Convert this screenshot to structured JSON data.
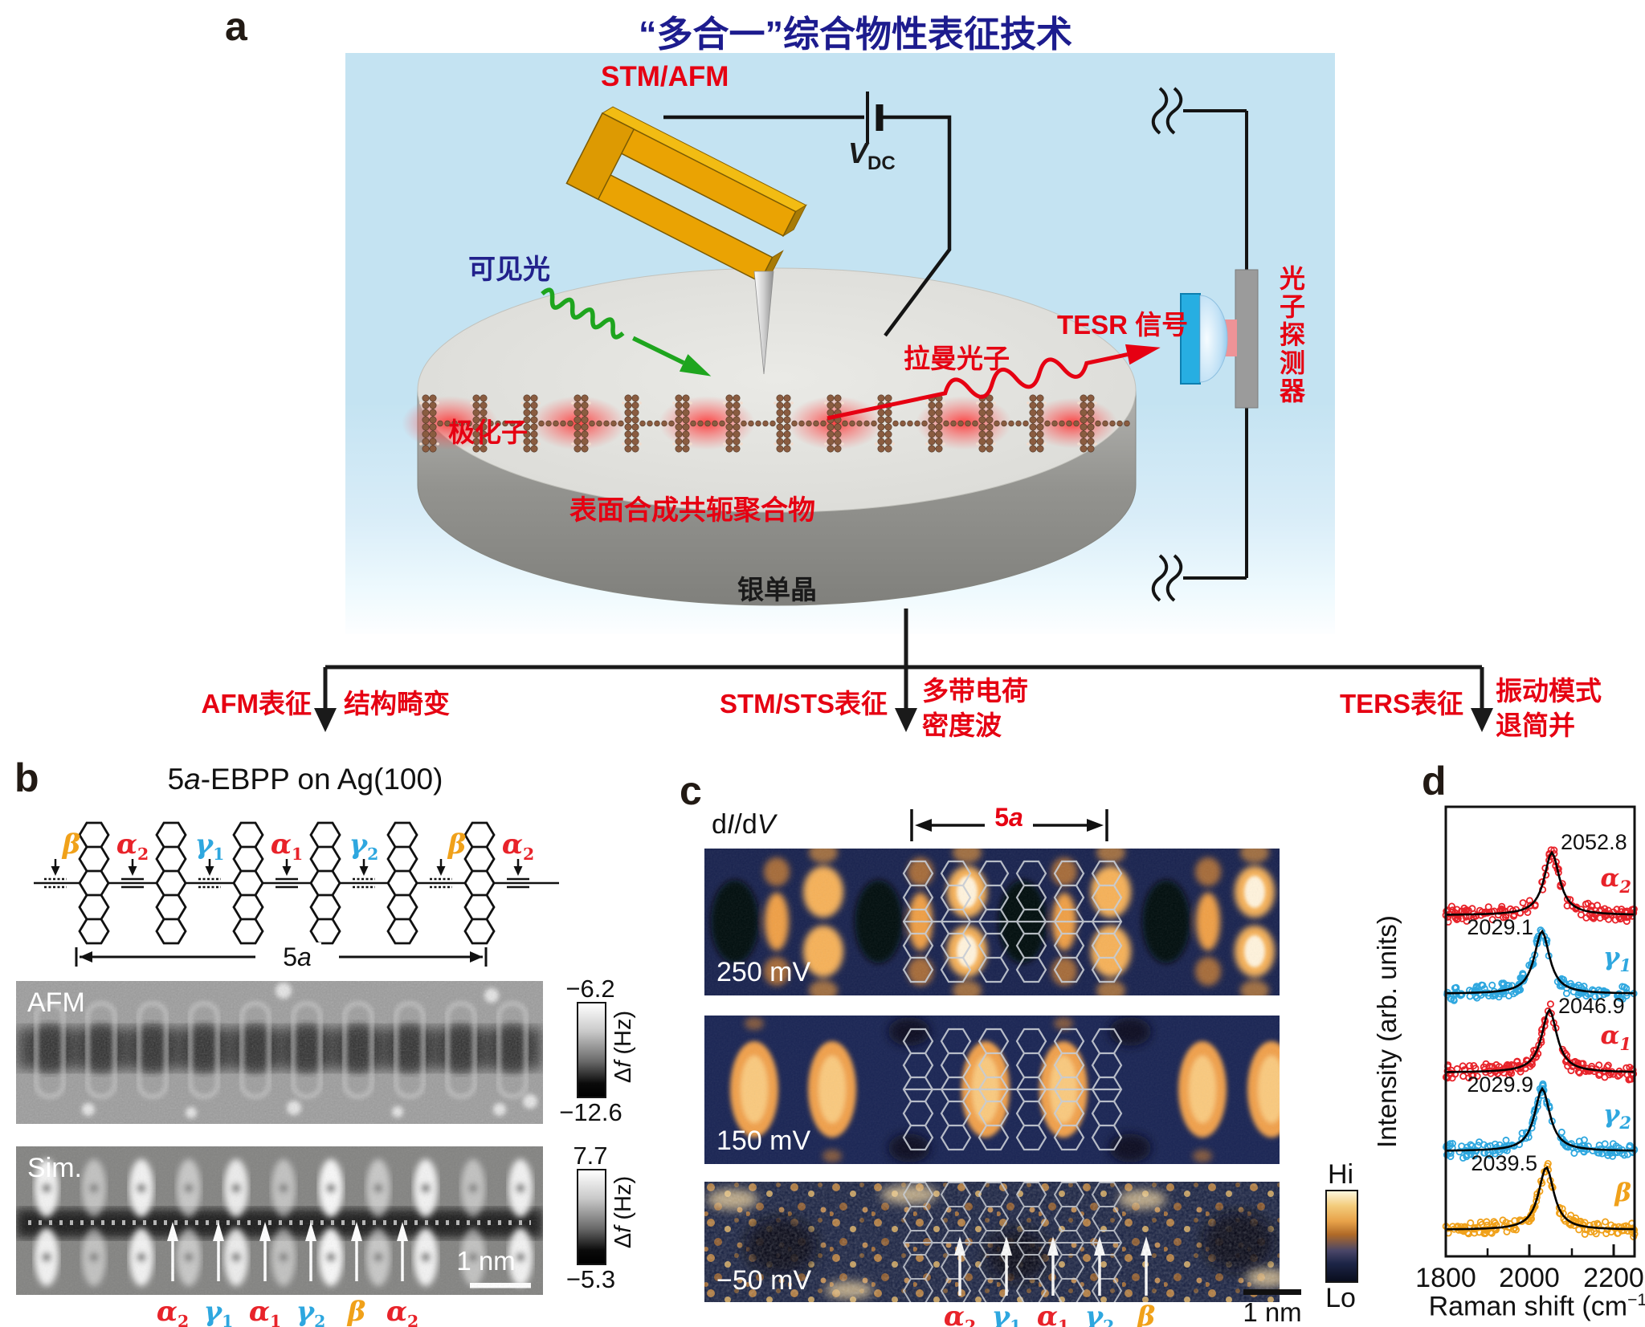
{
  "colors": {
    "accent_red": "#e60012",
    "title_navy": "#1d1c8e",
    "greek_red": "#e8232a",
    "greek_blue": "#2ea7df",
    "greek_orange": "#f0a11a",
    "gold_sensor": "#eaa303",
    "green_light": "#1ea51e",
    "stm_map_navy": "#18224e",
    "stm_map_orange": "#f0a04c"
  },
  "panel_a": {
    "label": "a",
    "title": "“多合一”综合物性表征技术",
    "stm_afm": "STM/AFM",
    "vdc": {
      "main": "V",
      "sub": "DC"
    },
    "visible_light": "可见光",
    "polaron": "极化子",
    "raman_photon": "拉曼光子",
    "tesr": "TESR 信号",
    "photon_detector": "光子探测器",
    "polymer": "表面合成共轭聚合物",
    "substrate": "银单晶"
  },
  "branches": {
    "afm": {
      "technique": "AFM表征",
      "result": "结构畸变"
    },
    "stm": {
      "technique": "STM/STS表征",
      "result": "多带电荷\n密度波"
    },
    "ters": {
      "technique": "TERS表征",
      "result": "振动模式\n退简并"
    }
  },
  "panel_b": {
    "label": "b",
    "title": {
      "pre": "5",
      "i": "a",
      "post": "-EBPP on Ag(100)"
    },
    "bond_labels": [
      {
        "base": "β",
        "sub": ""
      },
      {
        "base": "α",
        "sub": "2"
      },
      {
        "base": "γ",
        "sub": "1"
      },
      {
        "base": "α",
        "sub": "1"
      },
      {
        "base": "γ",
        "sub": "2"
      },
      {
        "base": "β",
        "sub": ""
      },
      {
        "base": "α",
        "sub": "2"
      }
    ],
    "dim": {
      "pre": "5",
      "i": "a"
    },
    "afm_label": "AFM",
    "sim_label": "Sim.",
    "afm_scale": {
      "top": "−6.2",
      "bottom": "−12.6"
    },
    "sim_scale": {
      "top": "7.7",
      "bottom": "−5.3"
    },
    "scale_unit": {
      "d": "Δ",
      "f": "f",
      "rest": " (Hz)"
    },
    "scalebar": "1 nm",
    "site_labels": [
      {
        "base": "α",
        "sub": "2"
      },
      {
        "base": "γ",
        "sub": "1"
      },
      {
        "base": "α",
        "sub": "1"
      },
      {
        "base": "γ",
        "sub": "2"
      },
      {
        "base": "β",
        "sub": ""
      },
      {
        "base": "α",
        "sub": "2"
      }
    ]
  },
  "panel_c": {
    "label": "c",
    "map_type": {
      "p1": "d",
      "p2": "I",
      "p3": "/d",
      "p4": "V"
    },
    "dim": {
      "pre": "5",
      "i": "a"
    },
    "biases": [
      "250 mV",
      "150 mV",
      "−50 mV"
    ],
    "colorbar": {
      "top": "Hi",
      "bottom": "Lo"
    },
    "scalebar": "1 nm",
    "site_labels": [
      {
        "base": "α",
        "sub": "2"
      },
      {
        "base": "γ",
        "sub": "1"
      },
      {
        "base": "α",
        "sub": "1"
      },
      {
        "base": "γ",
        "sub": "2"
      },
      {
        "base": "β",
        "sub": ""
      }
    ]
  },
  "panel_d": {
    "label": "d",
    "xlabel_parts": {
      "pre": "Raman shift (cm",
      "sup": "−1",
      "post": ")"
    }
  },
  "chart_data": {
    "type": "scatter",
    "xlabel": "Raman shift (cm⁻¹)",
    "ylabel": "Intensity (arb. units)",
    "xlim": [
      1800,
      2250
    ],
    "xticks": [
      1800,
      2000,
      2200
    ],
    "stacked_offset": true,
    "series": [
      {
        "base": "α",
        "sub": "2",
        "color": "#e8232a",
        "peak_center": 2052.8,
        "peak_label": "2052.8",
        "label_side": "right"
      },
      {
        "base": "γ",
        "sub": "1",
        "color": "#2ea7df",
        "peak_center": 2029.1,
        "peak_label": "2029.1",
        "label_side": "left"
      },
      {
        "base": "α",
        "sub": "1",
        "color": "#e8232a",
        "peak_center": 2046.9,
        "peak_label": "2046.9",
        "label_side": "right"
      },
      {
        "base": "γ",
        "sub": "2",
        "color": "#2ea7df",
        "peak_center": 2029.9,
        "peak_label": "2029.9",
        "label_side": "left"
      },
      {
        "base": "β",
        "sub": "",
        "color": "#f0a11a",
        "peak_center": 2039.5,
        "peak_label": "2039.5",
        "label_side": "left"
      }
    ]
  }
}
